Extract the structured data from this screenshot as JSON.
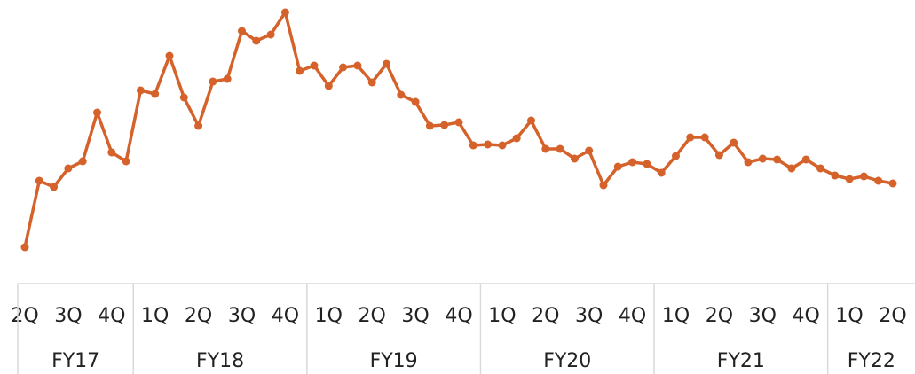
{
  "chart_data": {
    "type": "line",
    "color": "#d4622a",
    "ylim": [
      0,
      300
    ],
    "categories": [
      "2Q",
      null,
      null,
      "3Q",
      null,
      null,
      "4Q",
      null,
      null,
      "1Q",
      null,
      null,
      "2Q",
      null,
      null,
      "3Q",
      null,
      null,
      "4Q",
      null,
      null,
      "1Q",
      null,
      null,
      "2Q",
      null,
      null,
      "3Q",
      null,
      null,
      "4Q",
      null,
      null,
      "1Q",
      null,
      null,
      "2Q",
      null,
      null,
      "3Q",
      null,
      null,
      "4Q",
      null,
      null,
      "1Q",
      null,
      null,
      "2Q",
      null,
      null,
      "3Q",
      null,
      null,
      "4Q",
      null,
      null,
      "1Q",
      null,
      null,
      "2Q"
    ],
    "fiscal_years": [
      "FY17",
      "FY18",
      "FY19",
      "FY20",
      "FY21",
      "FY22"
    ],
    "values": [
      21,
      96,
      89,
      110,
      118,
      173,
      128,
      118,
      198,
      194,
      237,
      190,
      158,
      208,
      211,
      265,
      254,
      261,
      286,
      220,
      226,
      203,
      224,
      226,
      207,
      228,
      193,
      185,
      158,
      159,
      162,
      136,
      137,
      136,
      144,
      164,
      132,
      132,
      121,
      130,
      91,
      112,
      117,
      115,
      105,
      124,
      145,
      145,
      125,
      139,
      117,
      121,
      120,
      110,
      120,
      110,
      102,
      98,
      101,
      96,
      93
    ]
  }
}
